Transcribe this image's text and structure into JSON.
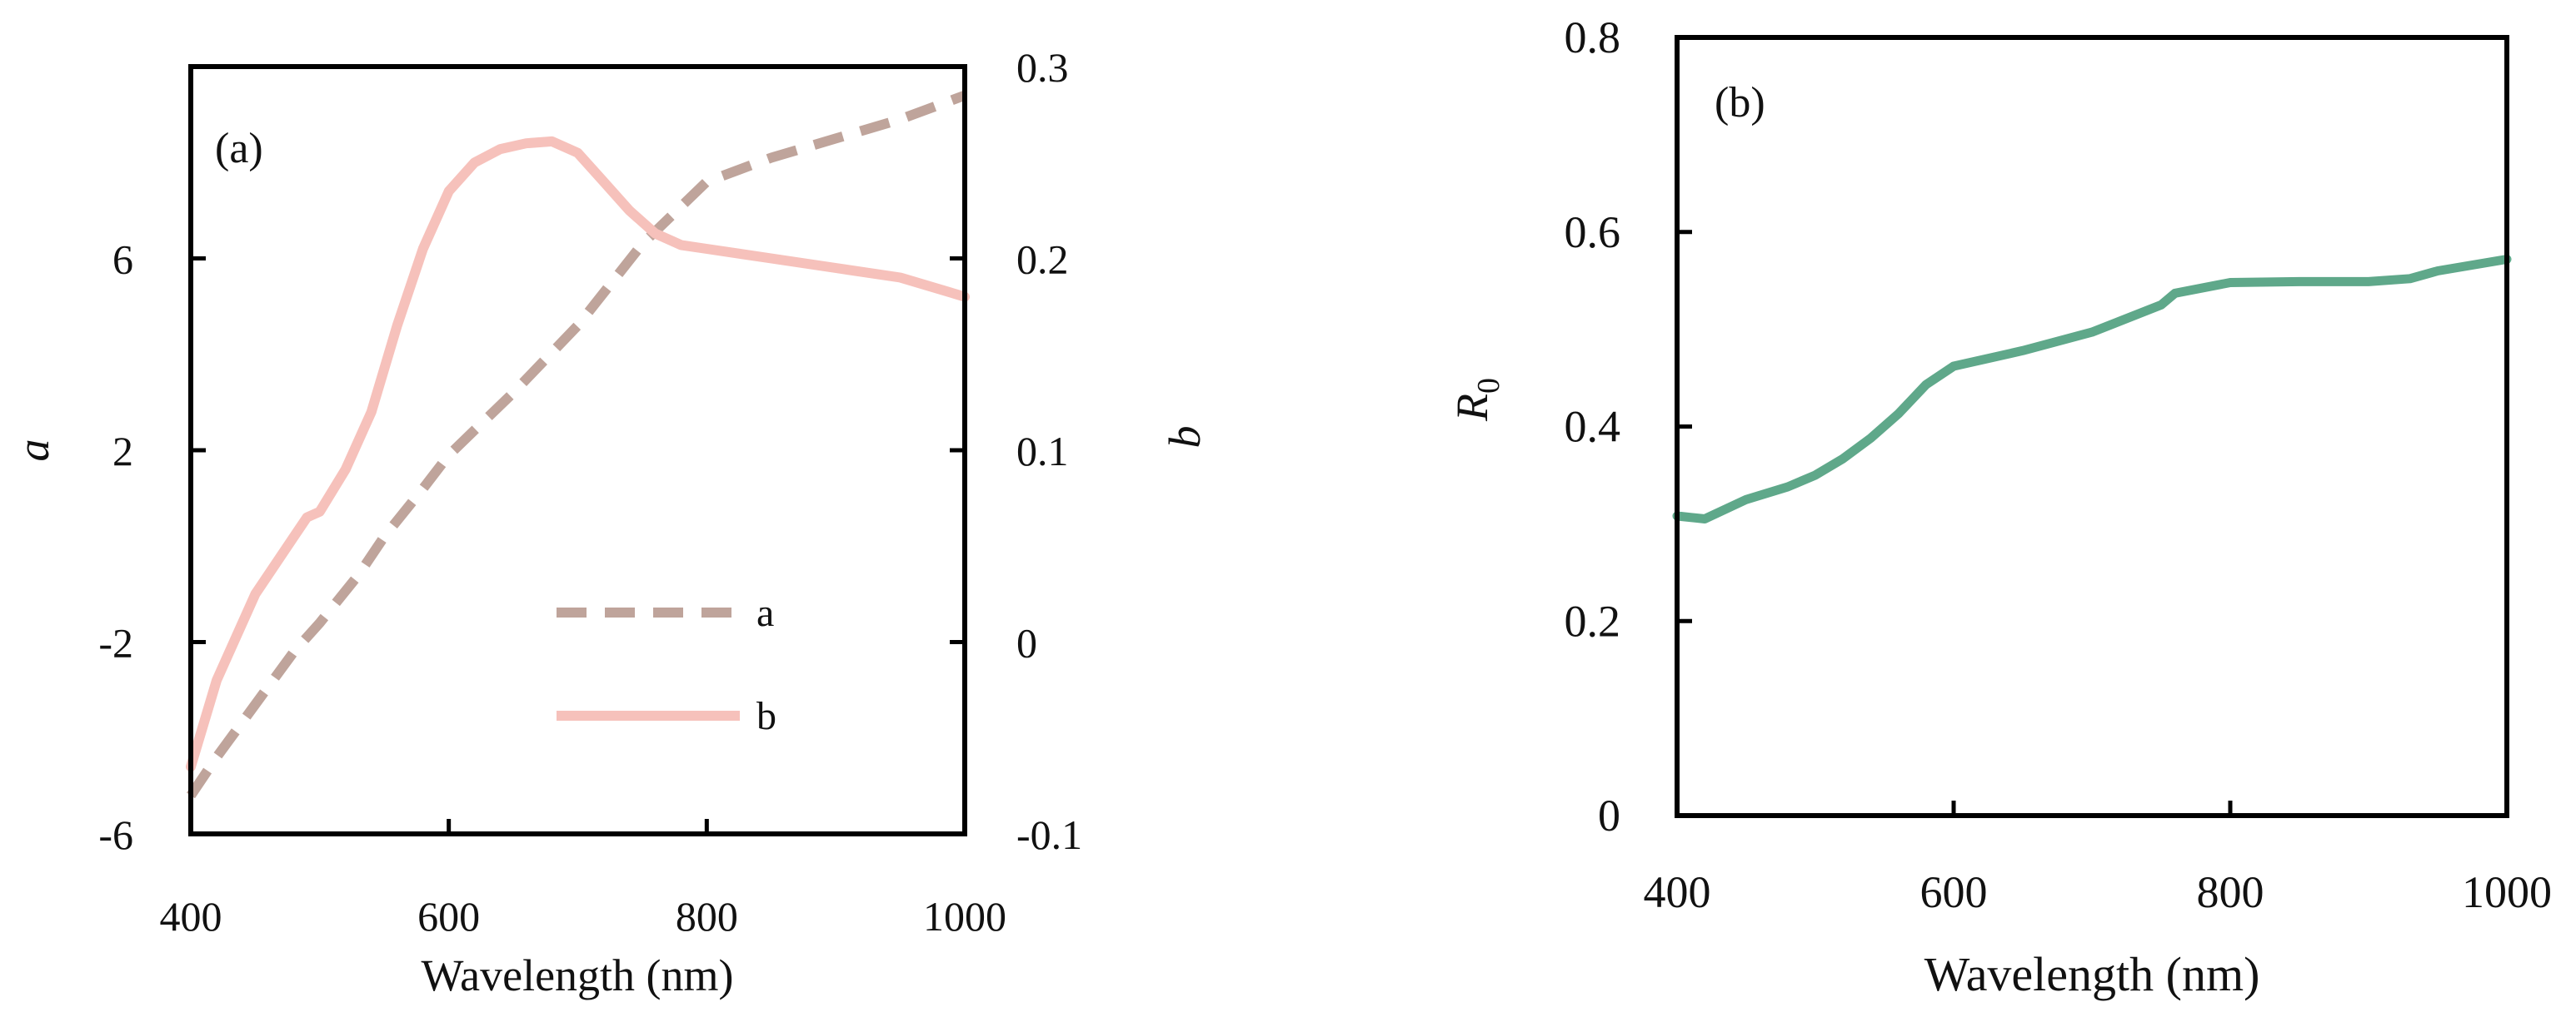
{
  "colors": {
    "a": "#bfa49b",
    "b": "#f6c1bb",
    "R0": "#5fa88a",
    "axis": "#000000"
  },
  "chart_data": [
    {
      "type": "line",
      "panel_label": "(a)",
      "xlabel": "Wavelength (nm)",
      "xlim": [
        400,
        1000
      ],
      "xticks": [
        "400",
        "600",
        "800",
        "1000"
      ],
      "ylabel_left": "a",
      "ylim_left": [
        -6,
        10
      ],
      "yticks_left": [
        "-6",
        "-2",
        "2",
        "6"
      ],
      "ylabel_right": "b",
      "ylim_right": [
        -0.1,
        0.3
      ],
      "yticks_right": [
        "-0.1",
        "0",
        "0.1",
        "0.2",
        "0.3"
      ],
      "legend_position": "bottom-right",
      "series": [
        {
          "name": "a",
          "axis": "left",
          "style": "dashed",
          "x": [
            400,
            420,
            450,
            480,
            500,
            530,
            550,
            580,
            600,
            650,
            700,
            750,
            800,
            850,
            900,
            950,
            1000
          ],
          "y": [
            -5.2,
            -4.4,
            -3.3,
            -2.2,
            -1.6,
            -0.6,
            0.2,
            1.2,
            1.9,
            3.2,
            4.6,
            6.3,
            7.6,
            8.1,
            8.5,
            8.9,
            9.4
          ]
        },
        {
          "name": "b",
          "axis": "right",
          "style": "solid",
          "x": [
            400,
            420,
            450,
            480,
            490,
            500,
            520,
            540,
            560,
            580,
            600,
            620,
            640,
            660,
            680,
            700,
            720,
            740,
            760,
            780,
            800,
            850,
            900,
            950,
            1000
          ],
          "y": [
            -0.065,
            -0.02,
            0.025,
            0.055,
            0.065,
            0.068,
            0.09,
            0.12,
            0.165,
            0.205,
            0.235,
            0.25,
            0.257,
            0.26,
            0.261,
            0.255,
            0.24,
            0.225,
            0.213,
            0.207,
            0.205,
            0.2,
            0.195,
            0.19,
            0.18
          ]
        }
      ]
    },
    {
      "type": "line",
      "panel_label": "(b)",
      "xlabel": "Wavelength (nm)",
      "xlim": [
        400,
        1000
      ],
      "xticks": [
        "400",
        "600",
        "800",
        "1000"
      ],
      "ylabel": "R",
      "ylabel_sub": "0",
      "ylim": [
        0,
        0.8
      ],
      "yticks": [
        "0",
        "0.2",
        "0.4",
        "0.6",
        "0.8"
      ],
      "series": [
        {
          "x": [
            400,
            420,
            450,
            480,
            500,
            520,
            540,
            560,
            580,
            600,
            650,
            700,
            750,
            760,
            800,
            850,
            900,
            930,
            950,
            1000
          ],
          "y": [
            0.308,
            0.305,
            0.325,
            0.338,
            0.35,
            0.367,
            0.388,
            0.413,
            0.443,
            0.462,
            0.478,
            0.497,
            0.525,
            0.537,
            0.548,
            0.549,
            0.549,
            0.552,
            0.56,
            0.572
          ]
        }
      ]
    }
  ]
}
